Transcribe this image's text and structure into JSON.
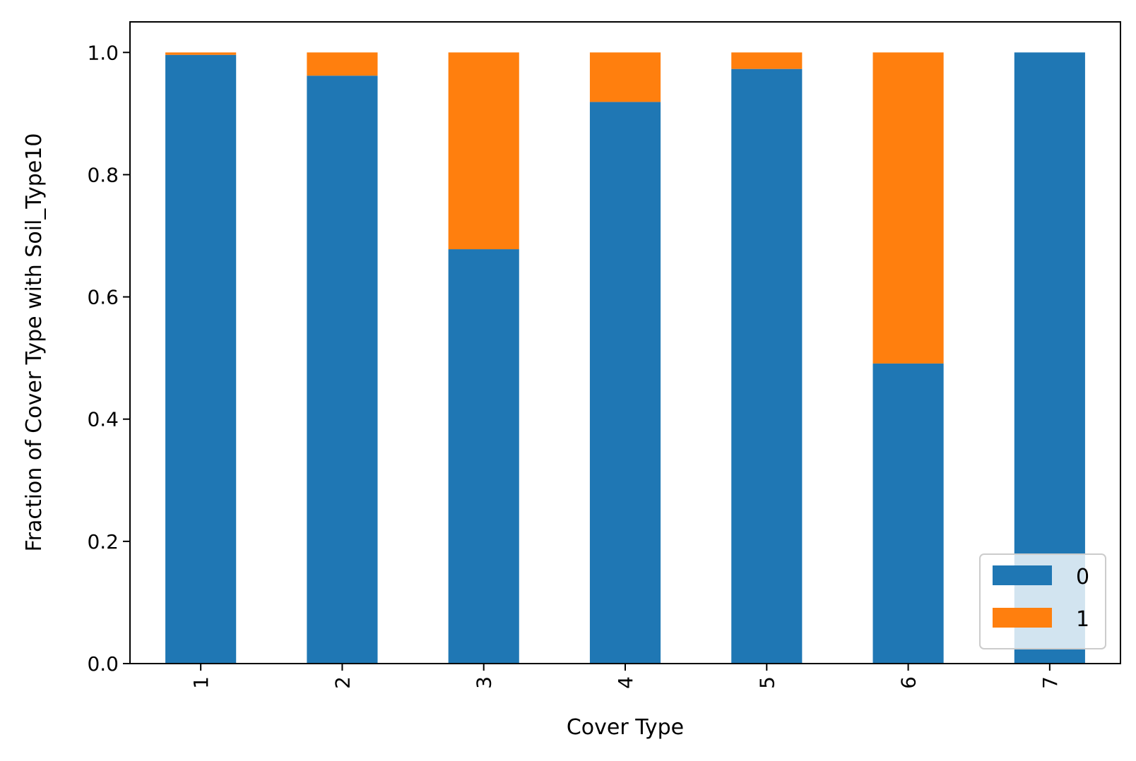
{
  "chart_data": {
    "type": "bar",
    "stacked": true,
    "categories": [
      "1",
      "2",
      "3",
      "4",
      "5",
      "6",
      "7"
    ],
    "series": [
      {
        "name": "0",
        "color": "#1f77b4",
        "values": [
          0.996,
          0.962,
          0.678,
          0.919,
          0.973,
          0.491,
          1.0
        ]
      },
      {
        "name": "1",
        "color": "#ff7f0e",
        "values": [
          0.004,
          0.038,
          0.322,
          0.081,
          0.027,
          0.509,
          0.0
        ]
      }
    ],
    "title": "",
    "xlabel": "Cover Type",
    "ylabel": "Fraction of Cover Type with Soil_Type10",
    "ylim": [
      0,
      1.05
    ],
    "yticks": [
      0.0,
      0.2,
      0.4,
      0.6,
      0.8,
      1.0
    ],
    "ytick_labels": [
      "0.0",
      "0.2",
      "0.4",
      "0.6",
      "0.8",
      "1.0"
    ],
    "xtick_rotation": 90,
    "grid": false,
    "legend_position": "lower-right"
  }
}
